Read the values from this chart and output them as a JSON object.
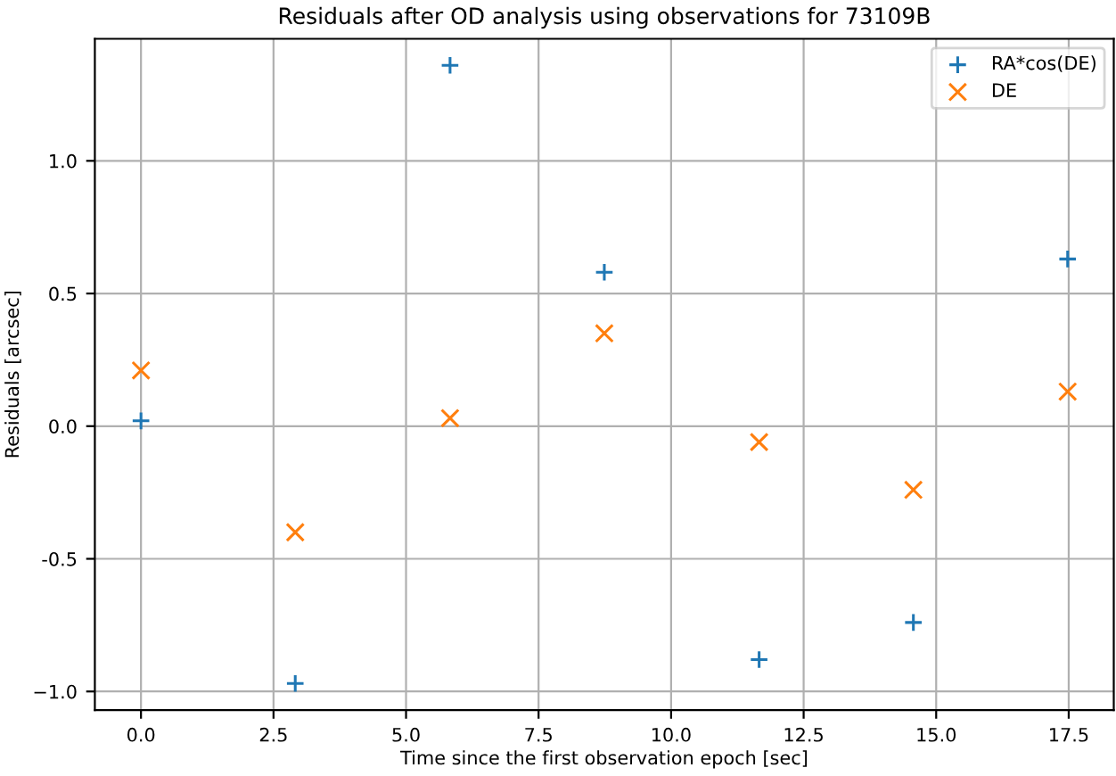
{
  "chart_data": {
    "type": "scatter",
    "title": "Residuals after OD analysis using observations for 73109B",
    "xlabel": "Time since the first observation epoch [sec]",
    "ylabel": "Residuals [arcsec]",
    "x": [
      0.0,
      2.91,
      5.83,
      8.74,
      11.66,
      14.57,
      17.48
    ],
    "series": [
      {
        "name": "RA*cos(DE)",
        "color": "#1f77b4",
        "marker": "plus",
        "values": [
          0.02,
          -0.97,
          1.36,
          0.58,
          -0.88,
          -0.74,
          0.63
        ]
      },
      {
        "name": "DE",
        "color": "#ff7f0e",
        "marker": "cross",
        "values": [
          0.21,
          -0.4,
          0.03,
          0.35,
          -0.06,
          -0.24,
          0.13
        ]
      }
    ],
    "xlim": [
      -0.87,
      18.35
    ],
    "ylim": [
      -1.07,
      1.46
    ],
    "xticks": [
      {
        "value": 0,
        "label": "0.0"
      },
      2.5,
      {
        "value": 5,
        "label": "5.0"
      },
      7.5,
      {
        "value": 10,
        "label": "10.0"
      },
      12.5,
      {
        "value": 15,
        "label": "15.0"
      },
      17.5
    ],
    "yticks": [
      {
        "value": -1,
        "label": "−1.0"
      },
      -0.5,
      {
        "value": 0,
        "label": "0.0"
      },
      0.5,
      {
        "value": 1,
        "label": "1.0"
      }
    ],
    "grid": true,
    "legend": "top right"
  }
}
